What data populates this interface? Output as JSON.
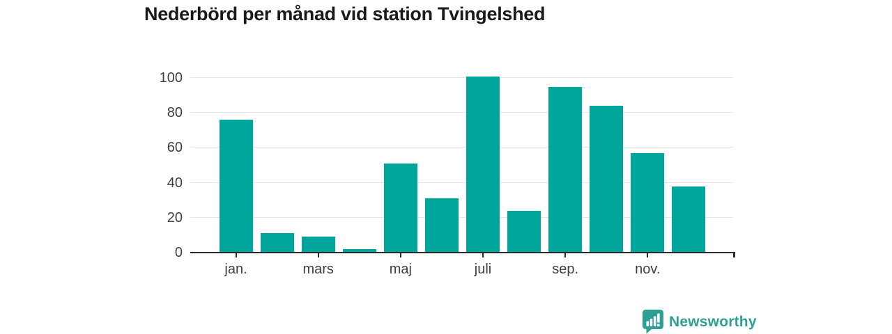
{
  "header": {
    "title": "Nederbörd per månad vid station Tvingelshed"
  },
  "colors": {
    "background": "#ffffff",
    "bar": "#00a69c",
    "brand": "#2f9e94",
    "title_text": "#1a1a1a",
    "tick_text": "#3f3f3f",
    "axis_line": "#2b2b2b",
    "gridline": "#e4e4e4",
    "icon_glyph": "#ffffff"
  },
  "chart_data": {
    "type": "bar",
    "title": "Nederbörd per månad vid station Tvingelshed",
    "bar_count": 12,
    "values": [
      76,
      11,
      9,
      2,
      51,
      31,
      101,
      24,
      95,
      84,
      57,
      38
    ],
    "x_tick_labels": [
      "jan.",
      "mars",
      "maj",
      "juli",
      "sep.",
      "nov."
    ],
    "x_tick_indices": [
      0,
      2,
      4,
      6,
      8,
      10
    ],
    "y_ticks": [
      0,
      20,
      40,
      60,
      80,
      100
    ],
    "ylim": [
      0,
      104
    ],
    "grid": "horizontal",
    "legend": "none"
  },
  "branding": {
    "logo_text": "Newsworthy",
    "logo_icon": "speech-bubble-with-bar-chart-and-exclamation"
  }
}
